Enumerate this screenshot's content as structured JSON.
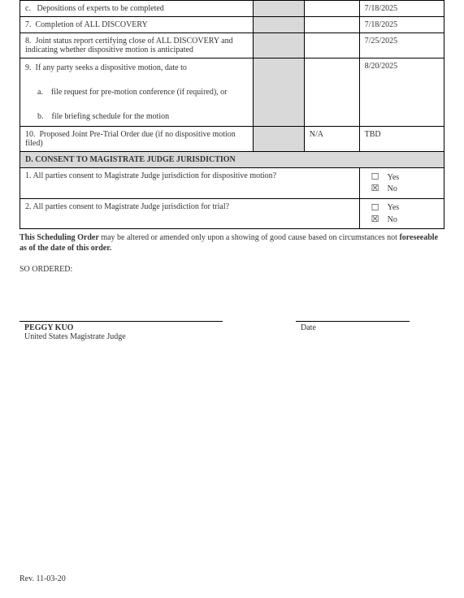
{
  "rows": [
    {
      "desc": "c.   Depositions of experts to be completed",
      "descClass": "indent-c",
      "gray": true,
      "mid": "",
      "date": "7/18/2025"
    },
    {
      "desc": "7.  Completion of ALL DISCOVERY",
      "descClass": "indent-num",
      "gray": true,
      "mid": "",
      "date": "7/18/2025"
    },
    {
      "desc": "8.  Joint status report certifying close of ALL DISCOVERY and indicating whether dispositive motion is anticipated",
      "descClass": "indent-num",
      "gray": true,
      "mid": "",
      "date": "7/25/2025"
    },
    {
      "desc": "9.  If any party seeks a dispositive motion, date to\n\n      a.    file request for pre-motion conference (if required), or\n\n      b.    file briefing schedule for the motion",
      "descClass": "indent-num multi",
      "gray": true,
      "mid": "",
      "date": "8/20/2025"
    },
    {
      "desc": "10.  Proposed Joint Pre-Trial Order due (if no dispositive motion filed)",
      "descClass": "indent-num",
      "gray": true,
      "mid": "N/A",
      "date": "TBD"
    }
  ],
  "sectionD": "D. CONSENT TO MAGISTRATE JUDGE JURISDICTION",
  "consent": [
    {
      "text": "1.  All parties consent to Magistrate Judge jurisdiction for dispositive motion?",
      "yes": false,
      "no": true
    },
    {
      "text": "2.  All parties consent to Magistrate Judge jurisdiction for trial?",
      "yes": false,
      "no": true
    }
  ],
  "labels": {
    "yes": "Yes",
    "no": "No"
  },
  "note": {
    "bold1": "This Scheduling Order",
    "mid": " may be altered or amended only upon a showing of good cause based on circumstances not ",
    "bold2": "foreseeable as of the date of this order."
  },
  "ordered": "SO ORDERED:",
  "sig": {
    "name": "PEGGY KUO",
    "title": "United States Magistrate Judge",
    "date": "Date"
  },
  "footer": "Rev. 11-03-20"
}
